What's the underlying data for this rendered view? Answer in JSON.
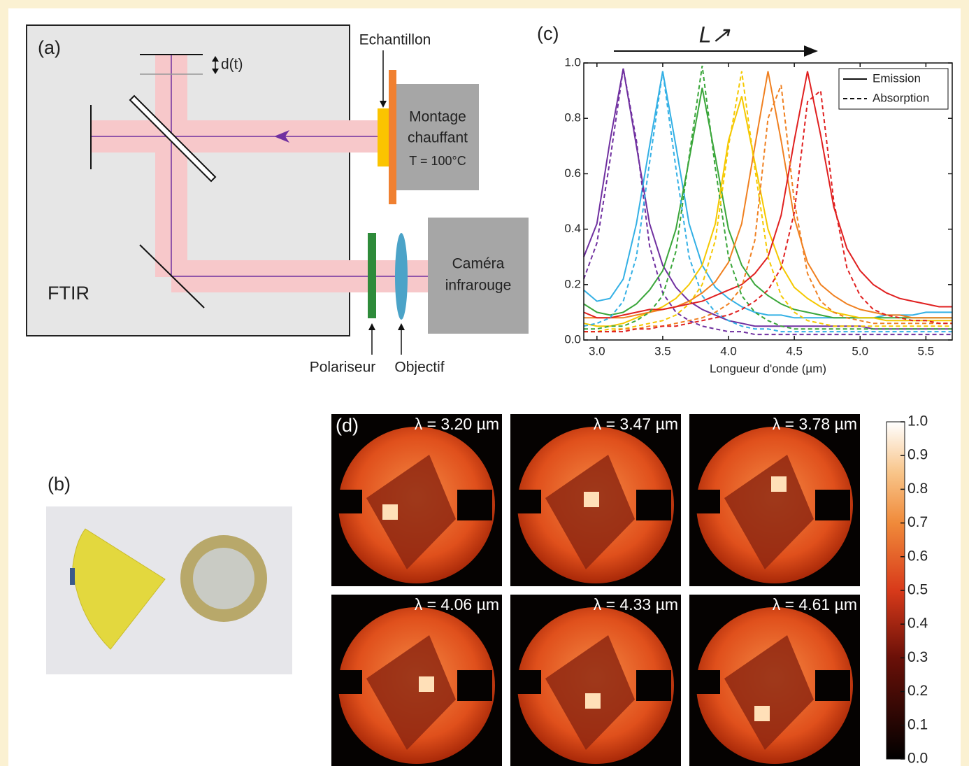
{
  "panel_a": {
    "label": "(a)",
    "displacement": "d(t)",
    "sample": "Echantillon",
    "heater": [
      "Montage",
      "chauffant"
    ],
    "temperature": "T = 100°C",
    "camera": [
      "Caméra",
      "infrarouge"
    ],
    "polarizer": "Polariseur",
    "objective": "Objectif",
    "instrument": "FTIR"
  },
  "panel_b": {
    "label": "(b)"
  },
  "chart_data": {
    "type": "line",
    "label": "(c)",
    "annotation": "L↗",
    "xlabel": "Longueur d'onde (µm)",
    "xlim": [
      2.9,
      5.7
    ],
    "xticks": [
      {
        "value": 3,
        "label": "3.0"
      },
      3.5,
      {
        "value": 4,
        "label": "4.0"
      },
      4.5,
      {
        "value": 5,
        "label": "5.0"
      },
      5.5
    ],
    "ylim": [
      0,
      1
    ],
    "yticks": [
      {
        "value": 0,
        "label": "0.0"
      },
      0.2,
      0.4,
      0.6,
      0.8,
      {
        "value": 1,
        "label": "1.0"
      }
    ],
    "x": [
      2.9,
      3.0,
      3.1,
      3.2,
      3.3,
      3.4,
      3.5,
      3.6,
      3.7,
      3.8,
      3.9,
      4.0,
      4.1,
      4.2,
      4.3,
      4.4,
      4.5,
      4.6,
      4.7,
      4.8,
      4.9,
      5.0,
      5.1,
      5.2,
      5.3,
      5.4,
      5.5,
      5.6,
      5.7
    ],
    "series": [
      {
        "color": "#7030a0",
        "dash": "solid",
        "values": [
          0.3,
          0.42,
          0.72,
          0.98,
          0.7,
          0.42,
          0.27,
          0.19,
          0.14,
          0.11,
          0.09,
          0.07,
          0.06,
          0.05,
          0.05,
          0.05,
          0.05,
          0.05,
          0.05,
          0.05,
          0.05,
          0.05,
          0.04,
          0.04,
          0.04,
          0.04,
          0.04,
          0.04,
          0.04
        ]
      },
      {
        "color": "#33b0e5",
        "dash": "solid",
        "values": [
          0.18,
          0.14,
          0.15,
          0.22,
          0.42,
          0.7,
          0.97,
          0.7,
          0.42,
          0.27,
          0.19,
          0.15,
          0.12,
          0.1,
          0.09,
          0.09,
          0.08,
          0.08,
          0.08,
          0.08,
          0.08,
          0.08,
          0.08,
          0.09,
          0.09,
          0.09,
          0.1,
          0.1,
          0.1
        ]
      },
      {
        "color": "#3aa63a",
        "dash": "solid",
        "values": [
          0.13,
          0.1,
          0.09,
          0.1,
          0.13,
          0.18,
          0.25,
          0.4,
          0.65,
          0.91,
          0.66,
          0.4,
          0.27,
          0.2,
          0.16,
          0.13,
          0.11,
          0.1,
          0.09,
          0.08,
          0.08,
          0.08,
          0.08,
          0.08,
          0.08,
          0.08,
          0.08,
          0.08,
          0.08
        ]
      },
      {
        "color": "#f5c800",
        "dash": "solid",
        "values": [
          0.06,
          0.05,
          0.05,
          0.06,
          0.08,
          0.1,
          0.12,
          0.15,
          0.2,
          0.27,
          0.42,
          0.72,
          0.88,
          0.64,
          0.4,
          0.27,
          0.19,
          0.15,
          0.12,
          0.1,
          0.09,
          0.08,
          0.08,
          0.07,
          0.07,
          0.07,
          0.07,
          0.07,
          0.07
        ]
      },
      {
        "color": "#f08020",
        "dash": "solid",
        "values": [
          0.08,
          0.08,
          0.08,
          0.08,
          0.09,
          0.1,
          0.11,
          0.12,
          0.14,
          0.17,
          0.21,
          0.28,
          0.42,
          0.7,
          0.97,
          0.72,
          0.44,
          0.28,
          0.2,
          0.16,
          0.13,
          0.11,
          0.1,
          0.09,
          0.09,
          0.08,
          0.08,
          0.08,
          0.08
        ]
      },
      {
        "color": "#e02020",
        "dash": "solid",
        "values": [
          0.1,
          0.08,
          0.08,
          0.09,
          0.1,
          0.11,
          0.11,
          0.12,
          0.13,
          0.14,
          0.16,
          0.18,
          0.2,
          0.24,
          0.3,
          0.45,
          0.72,
          0.97,
          0.74,
          0.48,
          0.33,
          0.25,
          0.2,
          0.17,
          0.15,
          0.14,
          0.13,
          0.12,
          0.12
        ]
      },
      {
        "color": "#7030a0",
        "dash": "dashed",
        "values": [
          0.22,
          0.35,
          0.65,
          0.98,
          0.72,
          0.34,
          0.17,
          0.1,
          0.07,
          0.05,
          0.04,
          0.03,
          0.03,
          0.02,
          0.02,
          0.02,
          0.02,
          0.02,
          0.02,
          0.02,
          0.02,
          0.02,
          0.02,
          0.02,
          0.02,
          0.02,
          0.02,
          0.02,
          0.02
        ]
      },
      {
        "color": "#33b0e5",
        "dash": "dashed",
        "values": [
          0.05,
          0.06,
          0.08,
          0.14,
          0.3,
          0.64,
          0.97,
          0.62,
          0.3,
          0.16,
          0.1,
          0.07,
          0.05,
          0.04,
          0.04,
          0.03,
          0.03,
          0.03,
          0.03,
          0.03,
          0.03,
          0.03,
          0.03,
          0.03,
          0.03,
          0.03,
          0.03,
          0.03,
          0.03
        ]
      },
      {
        "color": "#3aa63a",
        "dash": "dashed",
        "values": [
          0.04,
          0.04,
          0.05,
          0.05,
          0.07,
          0.1,
          0.16,
          0.32,
          0.66,
          0.99,
          0.62,
          0.3,
          0.16,
          0.1,
          0.07,
          0.05,
          0.04,
          0.04,
          0.04,
          0.04,
          0.04,
          0.04,
          0.04,
          0.04,
          0.04,
          0.04,
          0.04,
          0.04,
          0.04
        ]
      },
      {
        "color": "#f5c800",
        "dash": "dashed",
        "values": [
          0.03,
          0.03,
          0.04,
          0.04,
          0.05,
          0.06,
          0.07,
          0.09,
          0.13,
          0.2,
          0.36,
          0.7,
          0.97,
          0.62,
          0.3,
          0.16,
          0.1,
          0.07,
          0.06,
          0.05,
          0.05,
          0.05,
          0.05,
          0.05,
          0.05,
          0.05,
          0.05,
          0.05,
          0.05
        ]
      },
      {
        "color": "#f08020",
        "dash": "dashed",
        "values": [
          0.03,
          0.03,
          0.03,
          0.04,
          0.04,
          0.05,
          0.05,
          0.06,
          0.07,
          0.08,
          0.1,
          0.13,
          0.19,
          0.36,
          0.8,
          0.92,
          0.5,
          0.24,
          0.14,
          0.1,
          0.08,
          0.07,
          0.06,
          0.06,
          0.06,
          0.06,
          0.06,
          0.06,
          0.06
        ]
      },
      {
        "color": "#e02020",
        "dash": "dashed",
        "values": [
          0.03,
          0.03,
          0.03,
          0.03,
          0.04,
          0.04,
          0.05,
          0.05,
          0.06,
          0.07,
          0.08,
          0.09,
          0.11,
          0.14,
          0.18,
          0.26,
          0.46,
          0.86,
          0.9,
          0.5,
          0.26,
          0.16,
          0.11,
          0.09,
          0.08,
          0.07,
          0.07,
          0.06,
          0.06
        ]
      }
    ],
    "legend": {
      "position": "upper right",
      "entries": [
        {
          "name": "Emission",
          "dash": "solid"
        },
        {
          "name": "Absorption",
          "dash": "dashed"
        }
      ]
    }
  },
  "panel_d": {
    "label": "(d)",
    "images": [
      "λ = 3.20 µm",
      "λ = 3.47 µm",
      "λ = 3.78 µm",
      "λ = 4.06 µm",
      "λ = 4.33 µm",
      "λ = 4.61 µm"
    ],
    "colorbar": {
      "lim": [
        0,
        1
      ],
      "ticks": [
        {
          "value": 0,
          "label": "0.0"
        },
        0.1,
        0.2,
        0.3,
        0.4,
        0.5,
        0.6,
        0.7,
        0.8,
        0.9,
        {
          "value": 1,
          "label": "1.0"
        }
      ]
    }
  }
}
